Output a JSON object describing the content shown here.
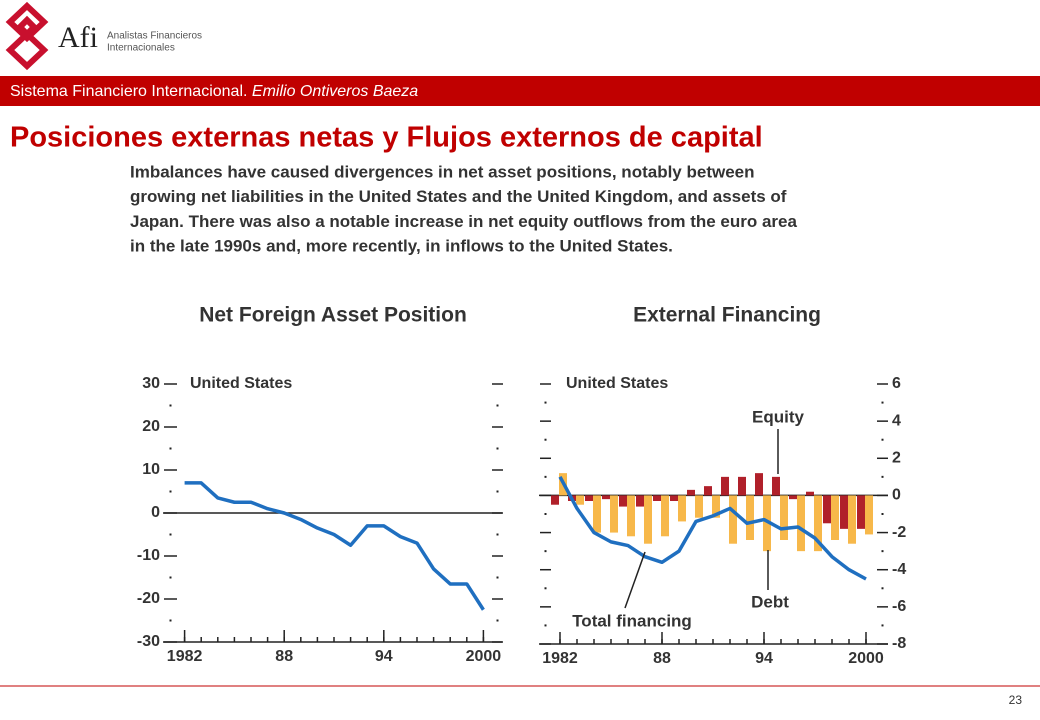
{
  "header": {
    "logo_text": "Afi",
    "company_line1": "Analistas Financieros",
    "company_line2": "Internacionales",
    "banner_course": "Sistema Financiero Internacional.",
    "banner_author": "Emilio Ontiveros Baeza",
    "title": "Posiciones externas netas y Flujos externos de capital"
  },
  "intro_lines": [
    "Imbalances have caused divergences in net asset positions, notably between",
    "growing net liabilities in the United States and the United Kingdom, and assets of",
    "Japan. There was also a notable increase in net equity outflows from the euro area",
    "in the late 1990s and, more recently, in inflows to the United States."
  ],
  "chart_data": [
    {
      "type": "line",
      "title": "Net Foreign Asset Position",
      "subtitle": "United States",
      "x": [
        1982,
        1983,
        1984,
        1985,
        1986,
        1987,
        1988,
        1989,
        1990,
        1991,
        1992,
        1993,
        1994,
        1995,
        1996,
        1997,
        1998,
        1999,
        2000
      ],
      "values": [
        7,
        7,
        3.5,
        2.5,
        2.5,
        1,
        0,
        -1.5,
        -3.5,
        -5,
        -7.5,
        -3,
        -3,
        -5.5,
        -7,
        -13,
        -16.5,
        -16.5,
        -22.5
      ],
      "color": "#1f6fc0",
      "xlim": [
        1981,
        2001
      ],
      "xticks": [
        1982,
        {
          "value": 1988,
          "label": "88"
        },
        {
          "value": 1994,
          "label": "94"
        },
        2000
      ],
      "ylim": [
        -30,
        30
      ],
      "yticks": [
        -30,
        -20,
        -10,
        0,
        10,
        20,
        30
      ]
    },
    {
      "type": "bar",
      "title": "External Financing",
      "subtitle": "United States",
      "x": [
        1982,
        1983,
        1984,
        1985,
        1986,
        1987,
        1988,
        1989,
        1990,
        1991,
        1992,
        1993,
        1994,
        1995,
        1996,
        1997,
        1998,
        1999,
        2000
      ],
      "series": [
        {
          "name": "Equity",
          "color": "#b0202a",
          "values": [
            -0.5,
            -0.3,
            -0.3,
            -0.2,
            -0.6,
            -0.6,
            -0.3,
            -0.3,
            0.3,
            0.5,
            1.0,
            1.0,
            1.2,
            1.0,
            -0.2,
            0.2,
            -1.5,
            -1.8,
            -1.8
          ]
        },
        {
          "name": "Debt",
          "color": "#f7b84a",
          "values": [
            1.2,
            -0.5,
            -2,
            -2,
            -2.2,
            -2.6,
            -2.2,
            -1.4,
            -1.2,
            -1.2,
            -2.6,
            -2.4,
            -3,
            -2.4,
            -3,
            -3,
            -2.4,
            -2.6,
            -2.1
          ]
        },
        {
          "name": "Total financing",
          "type": "line",
          "color": "#1f6fc0",
          "values": [
            1.0,
            -0.7,
            -2,
            -2.5,
            -2.7,
            -3.3,
            -3.6,
            -3.0,
            -1.4,
            -1.1,
            -0.7,
            -1.5,
            -1.3,
            -1.8,
            -1.7,
            -2.3,
            -3.3,
            -4.0,
            -4.5
          ]
        }
      ],
      "xlim": [
        1981,
        2001
      ],
      "xticks": [
        1982,
        {
          "value": 1988,
          "label": "88"
        },
        {
          "value": 1994,
          "label": "94"
        },
        2000
      ],
      "ylim": [
        -8,
        6
      ],
      "yticks": [
        -8,
        -6,
        -4,
        -2,
        0,
        2,
        4,
        6
      ]
    }
  ]
}
